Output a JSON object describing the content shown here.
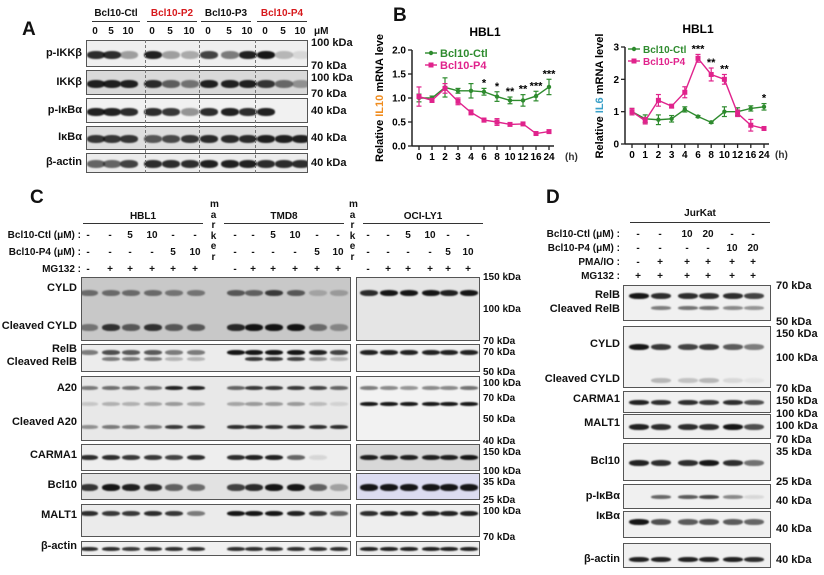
{
  "panelA": {
    "label": "A",
    "groups": [
      {
        "name": "Bcl10-Ctl",
        "color": "#111111"
      },
      {
        "name": "Bcl10-P2",
        "color": "#d7191c"
      },
      {
        "name": "Bcl10-P3",
        "color": "#111111"
      },
      {
        "name": "Bcl10-P4",
        "color": "#d7191c"
      }
    ],
    "doses": [
      "0",
      "5",
      "10"
    ],
    "unit": "μM",
    "rows": [
      {
        "name": "p-IKKβ",
        "markers": [
          "100 kDa",
          "70 kDa"
        ]
      },
      {
        "name": "IKKβ",
        "markers": [
          "100 kDa",
          "70 kDa"
        ]
      },
      {
        "name": "p-IκBα",
        "markers": [
          "40 kDa"
        ]
      },
      {
        "name": "IκBα",
        "markers": [
          "40 kDa"
        ]
      },
      {
        "name": "β-actin",
        "markers": [
          "40 kDa"
        ]
      }
    ]
  },
  "panelB": {
    "label": "B"
  },
  "chart_data": [
    {
      "type": "line",
      "title": "HBL1",
      "ylabel_prefix": "Relative ",
      "ylabel_gene": "IL10",
      "ylabel_gene_color": "#f08c1e",
      "ylabel_suffix": " mRNA leve",
      "x_unit": "(h)",
      "categories": [
        "0",
        "1",
        "2",
        "3",
        "4",
        "6",
        "8",
        "10",
        "12",
        "16",
        "24"
      ],
      "ylim": [
        0,
        2.0
      ],
      "yticks": [
        "0.0",
        "0.5",
        "1.0",
        "1.5",
        "2.0"
      ],
      "series": [
        {
          "name": "Bcl10-Ctl",
          "color": "#2e8b2e",
          "values": [
            1.0,
            1.0,
            1.22,
            1.15,
            1.15,
            1.13,
            1.03,
            0.95,
            0.95,
            1.04,
            1.23
          ],
          "errors": [
            0.08,
            0.04,
            0.2,
            0.05,
            0.15,
            0.07,
            0.1,
            0.07,
            0.12,
            0.1,
            0.16
          ]
        },
        {
          "name": "Bcl10-P4",
          "color": "#e0238c",
          "values": [
            1.03,
            0.95,
            1.2,
            0.93,
            0.7,
            0.54,
            0.5,
            0.45,
            0.46,
            0.26,
            0.3
          ],
          "errors": [
            0.2,
            0.04,
            0.1,
            0.07,
            0.05,
            0.04,
            0.07,
            0.02,
            0.03,
            0.02,
            0.02
          ]
        }
      ],
      "significance": [
        {
          "x": "6",
          "label": "*"
        },
        {
          "x": "8",
          "label": "*"
        },
        {
          "x": "10",
          "label": "**"
        },
        {
          "x": "12",
          "label": "**"
        },
        {
          "x": "16",
          "label": "***"
        },
        {
          "x": "24",
          "label": "***"
        }
      ],
      "legend": "top-left"
    },
    {
      "type": "line",
      "title": "HBL1",
      "ylabel_prefix": "Relative ",
      "ylabel_gene": "IL6",
      "ylabel_gene_color": "#3aa0c8",
      "ylabel_suffix": " mRNA level",
      "x_unit": "(h)",
      "categories": [
        "0",
        "1",
        "2",
        "3",
        "4",
        "6",
        "8",
        "10",
        "12",
        "16",
        "24"
      ],
      "ylim": [
        0,
        3
      ],
      "yticks": [
        "0",
        "1",
        "2",
        "3"
      ],
      "series": [
        {
          "name": "Bcl10-Ctl",
          "color": "#2e8b2e",
          "values": [
            1.0,
            0.78,
            0.75,
            0.78,
            1.07,
            0.85,
            0.67,
            1.0,
            1.0,
            1.1,
            1.15
          ],
          "errors": [
            0.1,
            0.12,
            0.15,
            0.1,
            0.08,
            0.03,
            0.03,
            0.15,
            0.12,
            0.08,
            0.1
          ]
        },
        {
          "name": "Bcl10-P4",
          "color": "#e0238c",
          "values": [
            1.0,
            0.72,
            1.35,
            1.17,
            1.6,
            2.65,
            2.15,
            2.0,
            0.95,
            0.58,
            0.48
          ],
          "errors": [
            0.1,
            0.1,
            0.18,
            0.05,
            0.17,
            0.12,
            0.2,
            0.15,
            0.1,
            0.18,
            0.05
          ]
        }
      ],
      "significance": [
        {
          "x": "6",
          "label": "***"
        },
        {
          "x": "8",
          "label": "**"
        },
        {
          "x": "10",
          "label": "**"
        },
        {
          "x": "24",
          "label": "*"
        }
      ],
      "legend": "top-left"
    }
  ],
  "panelC": {
    "label": "C",
    "cell_lines": [
      "HBL1",
      "TMD8",
      "OCI-LY1"
    ],
    "marker_label": "marker",
    "treatments": [
      {
        "label": "Bcl10-Ctl (μM) :",
        "values": [
          "-",
          "-",
          "5",
          "10",
          "-",
          "-"
        ]
      },
      {
        "label": "Bcl10-P4 (μM) :",
        "values": [
          "-",
          "-",
          "-",
          "-",
          "5",
          "10"
        ]
      },
      {
        "label": "MG132 :",
        "values": [
          "-",
          "+",
          "+",
          "+",
          "+",
          "+"
        ]
      }
    ],
    "rows": [
      {
        "labels": [
          "CYLD",
          "Cleaved CYLD"
        ],
        "markers": [
          "150 kDa",
          "100 kDa",
          "70 kDa"
        ]
      },
      {
        "labels": [
          "RelB",
          "Cleaved RelB"
        ],
        "markers": [
          "70 kDa",
          "50 kDa"
        ]
      },
      {
        "labels": [
          "A20",
          "Cleaved A20"
        ],
        "markers": [
          "100 kDa",
          "70 kDa",
          "50 kDa",
          "40 kDa"
        ]
      },
      {
        "labels": [
          "CARMA1"
        ],
        "markers": [
          "150 kDa",
          "100 kDa"
        ]
      },
      {
        "labels": [
          "Bcl10"
        ],
        "markers": [
          "35 kDa",
          "25 kDa"
        ]
      },
      {
        "labels": [
          "MALT1"
        ],
        "markers": [
          "100 kDa",
          "70 kDa"
        ]
      },
      {
        "labels": [
          "β-actin"
        ],
        "markers": []
      }
    ]
  },
  "panelD": {
    "label": "D",
    "cell_line": "JurKat",
    "treatments": [
      {
        "label": "Bcl10-Ctl (μM) :",
        "values": [
          "-",
          "-",
          "10",
          "20",
          "-",
          "-"
        ]
      },
      {
        "label": "Bcl10-P4 (μM) :",
        "values": [
          "-",
          "-",
          "-",
          "-",
          "10",
          "20"
        ]
      },
      {
        "label": "PMA/IO :",
        "values": [
          "-",
          "+",
          "+",
          "+",
          "+",
          "+"
        ]
      },
      {
        "label": "MG132 :",
        "values": [
          "+",
          "+",
          "+",
          "+",
          "+",
          "+"
        ]
      }
    ],
    "rows": [
      {
        "labels": [
          "RelB",
          "Cleaved RelB"
        ],
        "markers": [
          "70 kDa",
          "50 kDa"
        ]
      },
      {
        "labels": [
          "CYLD",
          "Cleaved CYLD"
        ],
        "markers": [
          "150 kDa",
          "100 kDa",
          "70 kDa"
        ]
      },
      {
        "labels": [
          "CARMA1"
        ],
        "markers": [
          "150 kDa",
          "100 kDa"
        ]
      },
      {
        "labels": [
          "MALT1"
        ],
        "markers": [
          "100 kDa",
          "70 kDa"
        ]
      },
      {
        "labels": [
          "Bcl10"
        ],
        "markers": [
          "35 kDa",
          "25 kDa"
        ]
      },
      {
        "labels": [
          "p-IκBα"
        ],
        "markers": [
          "40 kDa"
        ]
      },
      {
        "labels": [
          "IκBα"
        ],
        "markers": [
          "40 kDa"
        ]
      },
      {
        "labels": [
          "β-actin"
        ],
        "markers": [
          "40 kDa"
        ]
      }
    ]
  }
}
